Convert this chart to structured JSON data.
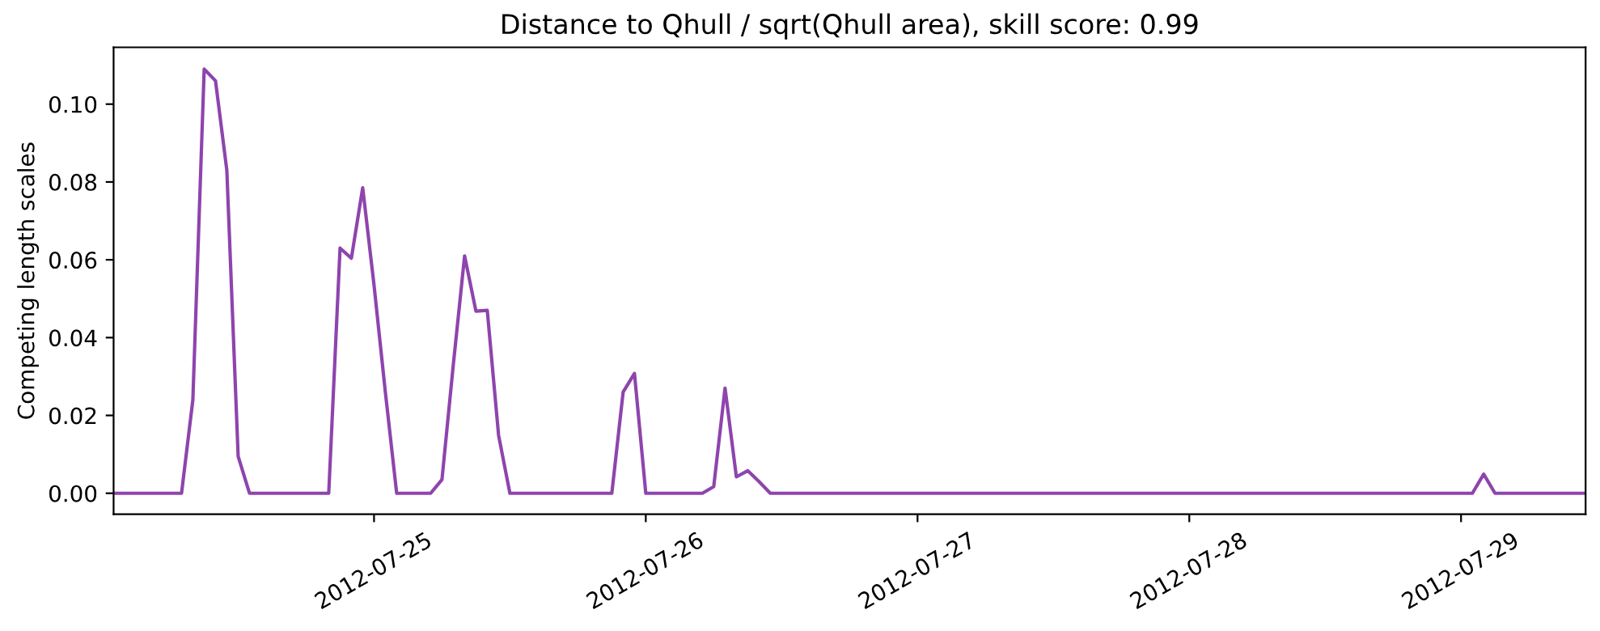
{
  "chart_data": {
    "type": "line",
    "title": "Distance to Qhull / sqrt(Qhull area), skill score: 0.99",
    "ylabel": "Competing length scales",
    "series": [
      {
        "color": "#8e44ad",
        "x": [
          "2012-07-24T01:00",
          "2012-07-24T07:00",
          "2012-07-24T08:00",
          "2012-07-24T09:00",
          "2012-07-24T10:00",
          "2012-07-24T11:00",
          "2012-07-24T12:00",
          "2012-07-24T13:00",
          "2012-07-24T20:00",
          "2012-07-24T21:00",
          "2012-07-24T22:00",
          "2012-07-24T23:00",
          "2012-07-25T00:00",
          "2012-07-25T01:00",
          "2012-07-25T02:00",
          "2012-07-25T05:00",
          "2012-07-25T06:00",
          "2012-07-25T07:00",
          "2012-07-25T08:00",
          "2012-07-25T09:00",
          "2012-07-25T10:00",
          "2012-07-25T11:00",
          "2012-07-25T12:00",
          "2012-07-25T21:00",
          "2012-07-25T22:00",
          "2012-07-25T23:00",
          "2012-07-26T00:00",
          "2012-07-26T05:00",
          "2012-07-26T06:00",
          "2012-07-26T07:00",
          "2012-07-26T08:00",
          "2012-07-26T09:00",
          "2012-07-26T10:00",
          "2012-07-26T11:00",
          "2012-07-29T01:00",
          "2012-07-29T02:00",
          "2012-07-29T03:00",
          "2012-07-29T11:00"
        ],
        "values": [
          0,
          0,
          0.024,
          0.109,
          0.106,
          0.083,
          0.0095,
          0,
          0,
          0.063,
          0.0604,
          0.0785,
          0.0535,
          0.026,
          0,
          0,
          0.0035,
          0.033,
          0.061,
          0.0468,
          0.047,
          0.0149,
          0,
          0,
          0.026,
          0.0308,
          0,
          0,
          0.0017,
          0.027,
          0.0042,
          0.0058,
          0.003,
          0,
          0,
          0.0049,
          0,
          0
        ]
      }
    ],
    "xlim": [
      "2012-07-24T01:00",
      "2012-07-29T11:00"
    ],
    "xticks": [
      {
        "value": "2012-07-25",
        "label": "2012-07-25"
      },
      {
        "value": "2012-07-26",
        "label": "2012-07-26"
      },
      {
        "value": "2012-07-27",
        "label": "2012-07-27"
      },
      {
        "value": "2012-07-28",
        "label": "2012-07-28"
      },
      {
        "value": "2012-07-29",
        "label": "2012-07-29"
      }
    ],
    "ylim": [
      -0.0054,
      0.1146
    ],
    "yticks": [
      {
        "value": 0,
        "label": "0.00"
      },
      {
        "value": 0.02,
        "label": "0.02"
      },
      {
        "value": 0.04,
        "label": "0.04"
      },
      {
        "value": 0.06,
        "label": "0.06"
      },
      {
        "value": 0.08,
        "label": "0.08"
      },
      {
        "value": 0.1,
        "label": "0.10"
      }
    ],
    "grid": false,
    "legend": false
  }
}
